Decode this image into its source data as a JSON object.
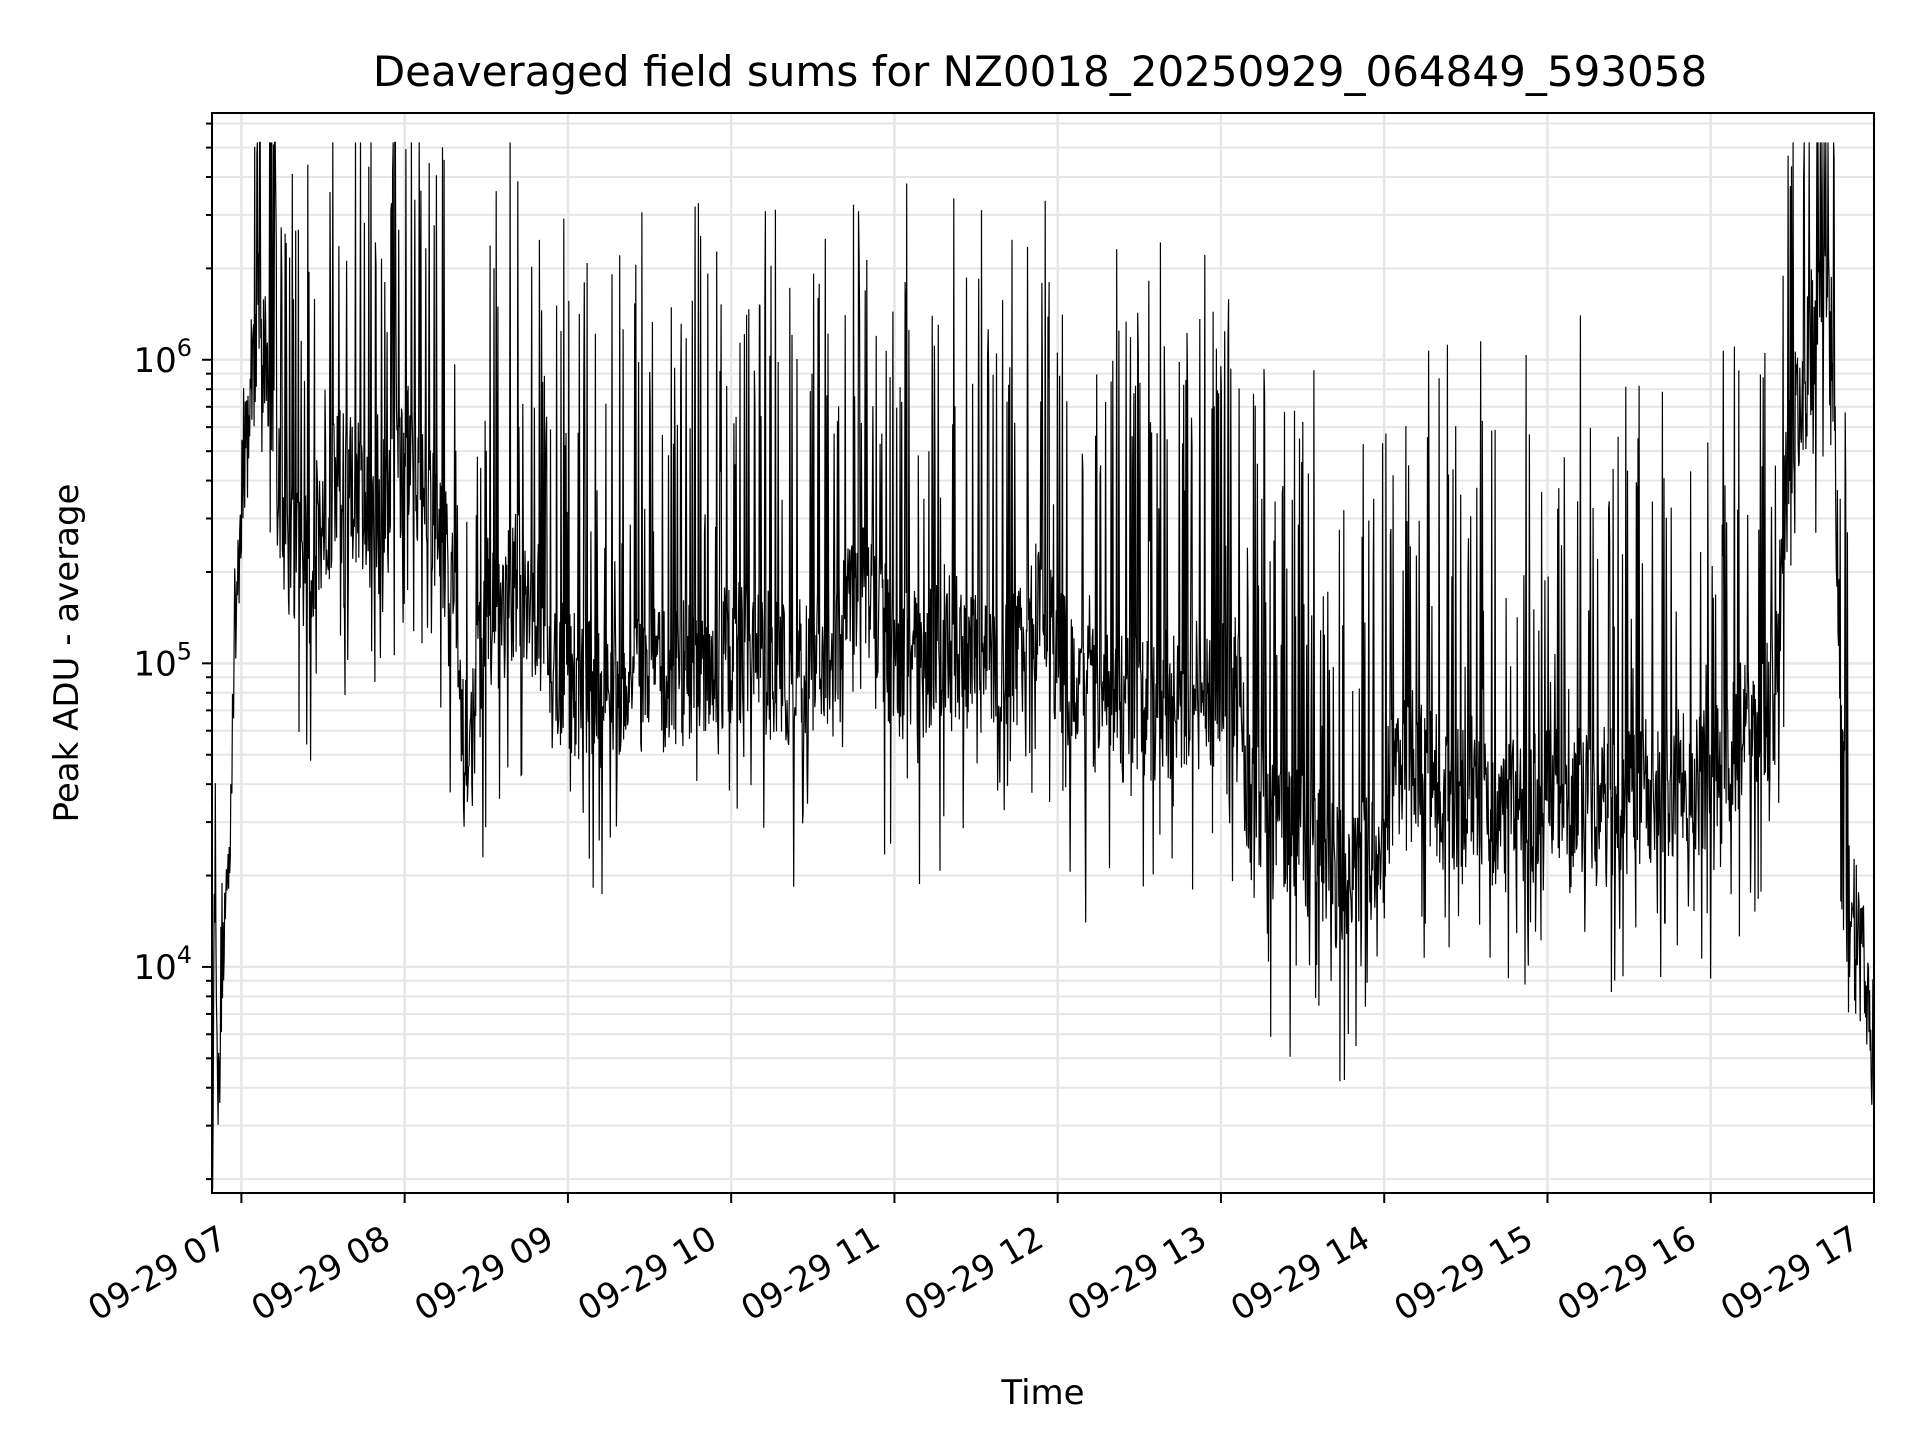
{
  "chart_data": {
    "type": "line",
    "title": "Deaveraged field sums for NZ0018_20250929_064849_593058",
    "xlabel": "Time",
    "ylabel": "Peak ADU - average",
    "yscale": "log",
    "xlim": [
      "2025-09-29 06:49",
      "2025-09-29 17:00"
    ],
    "ylim": [
      1800,
      6500000
    ],
    "x_ticks": [
      "09-29 07",
      "09-29 08",
      "09-29 09",
      "09-29 10",
      "09-29 11",
      "09-29 12",
      "09-29 13",
      "09-29 14",
      "09-29 15",
      "09-29 16",
      "09-29 17"
    ],
    "x_tick_hours": [
      7,
      8,
      9,
      10,
      11,
      12,
      13,
      14,
      15,
      16,
      17
    ],
    "y_ticks": [
      {
        "value": 10000,
        "base": "10",
        "exp": "4"
      },
      {
        "value": 100000,
        "base": "10",
        "exp": "5"
      },
      {
        "value": 1000000,
        "base": "10",
        "exp": "6"
      }
    ],
    "grid": true,
    "line_color": "#000000",
    "grid_color": "#e6e6e6",
    "series": [
      {
        "x_hours": [
          6.82,
          6.84,
          6.86,
          6.88,
          6.9,
          6.92,
          6.95,
          7.0,
          7.05,
          7.1,
          7.15,
          7.2,
          7.25,
          7.3,
          7.4,
          7.5,
          7.6,
          7.7,
          7.8,
          7.9,
          8.0,
          8.1,
          8.2,
          8.3,
          8.35,
          8.4,
          8.5,
          8.6,
          8.7,
          8.8,
          8.9,
          9.0,
          9.2,
          9.4,
          9.6,
          9.8,
          10.0,
          10.2,
          10.4,
          10.6,
          10.8,
          11.0,
          11.2,
          11.3,
          11.5,
          11.7,
          11.9,
          12.1,
          12.3,
          12.5,
          12.7,
          12.9,
          13.0,
          13.1,
          13.15,
          13.2,
          13.3,
          13.5,
          13.7,
          13.9,
          14.1,
          14.3,
          14.5,
          14.7,
          14.9,
          15.1,
          15.3,
          15.5,
          15.7,
          15.8,
          15.9,
          16.0,
          16.1,
          16.2,
          16.3,
          16.4,
          16.45,
          16.5,
          16.55,
          16.6,
          16.65,
          16.7,
          16.75,
          16.8,
          16.85,
          16.9,
          16.95,
          17.0
        ],
        "baseline": [
          2000,
          30000,
          3000,
          12000,
          14000,
          20000,
          90000,
          400000,
          700000,
          1500000,
          1000000,
          600000,
          250000,
          220000,
          220000,
          300000,
          400000,
          380000,
          250000,
          350000,
          500000,
          400000,
          300000,
          200000,
          50000,
          50000,
          150000,
          140000,
          200000,
          150000,
          100000,
          90000,
          80000,
          90000,
          85000,
          100000,
          110000,
          100000,
          90000,
          110000,
          200000,
          100000,
          100000,
          120000,
          100000,
          100000,
          150000,
          80000,
          70000,
          70000,
          75000,
          80000,
          95000,
          90000,
          45000,
          35000,
          30000,
          25000,
          20000,
          22000,
          50000,
          40000,
          35000,
          30000,
          35000,
          35000,
          35000,
          35000,
          40000,
          40000,
          40000,
          45000,
          50000,
          60000,
          60000,
          80000,
          300000,
          600000,
          700000,
          1000000,
          1400000,
          1500000,
          1000000,
          60000,
          14000,
          12000,
          9000,
          5000
        ]
      }
    ]
  }
}
